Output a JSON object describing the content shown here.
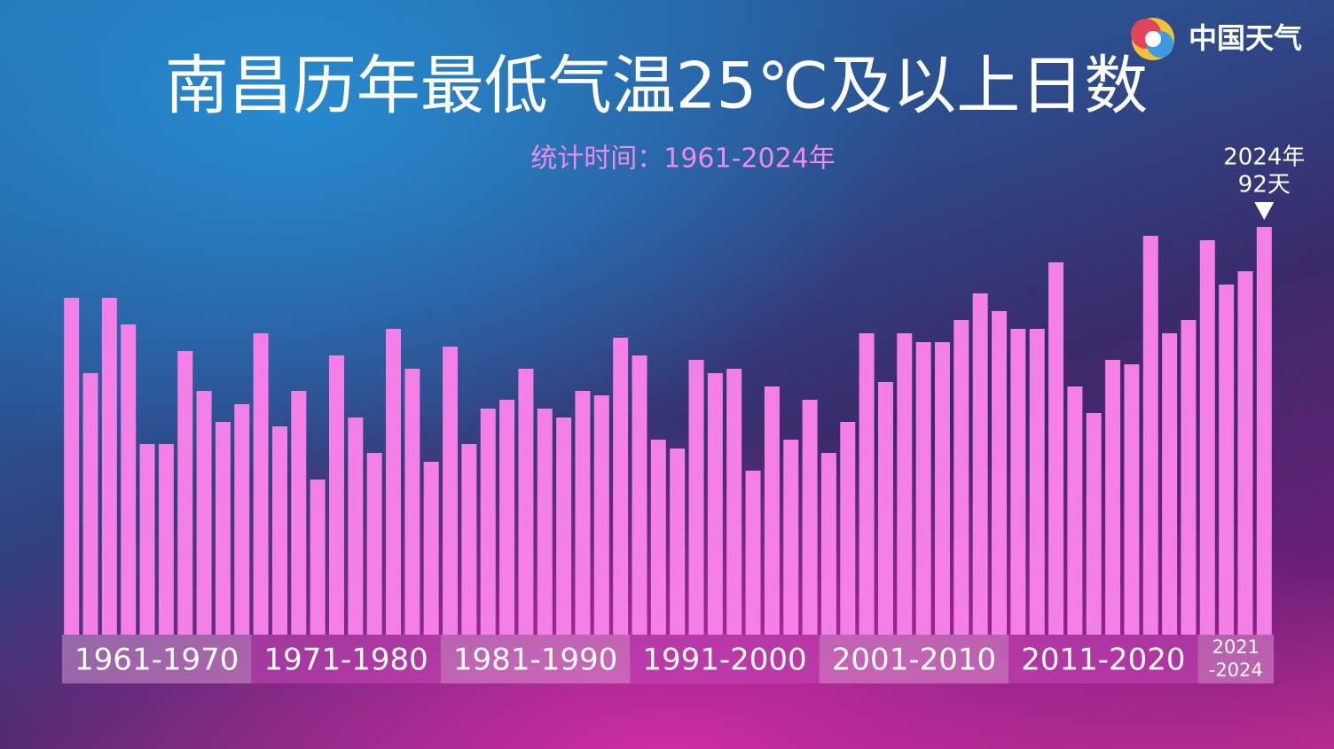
{
  "logo": "中国天气",
  "chart_data": {
    "type": "bar",
    "title": "南昌历年最低气温25℃及以上日数",
    "subtitle": "统计时间：1961-2024年",
    "color": "#f47fe6",
    "categories": [
      null,
      null,
      null,
      null,
      null,
      null,
      null,
      null,
      null,
      null,
      null,
      null,
      null,
      null,
      null,
      null,
      null,
      null,
      null,
      null,
      null,
      null,
      null,
      null,
      null,
      null,
      null,
      null,
      null,
      null,
      null,
      null,
      null,
      null,
      null,
      null,
      null,
      null,
      null,
      null,
      null,
      null,
      null,
      null,
      null,
      null,
      null,
      null,
      null,
      null,
      null,
      null,
      null,
      null,
      null,
      null,
      null,
      null,
      null,
      null,
      null,
      null,
      null,
      null
    ],
    "values": [
      76,
      59,
      76,
      70,
      43,
      43,
      64,
      55,
      48,
      52,
      68,
      47,
      55,
      35,
      63,
      49,
      41,
      69,
      60,
      39,
      65,
      43,
      51,
      53,
      60,
      51,
      49,
      55,
      54,
      67,
      63,
      44,
      42,
      62,
      59,
      60,
      37,
      56,
      44,
      53,
      41,
      48,
      68,
      57,
      68,
      66,
      66,
      71,
      77,
      73,
      69,
      69,
      84,
      56,
      50,
      62,
      61,
      90,
      68,
      71,
      89,
      79,
      82,
      92
    ],
    "groups": [
      [
        "1961-1970"
      ],
      [
        "1971-1980"
      ],
      [
        "1981-1990"
      ],
      [
        "1991-2000"
      ],
      [
        "2001-2010"
      ],
      [
        "2011-2020"
      ],
      [
        "2021",
        "-2024"
      ]
    ],
    "annotation": [
      "2024年",
      "92天"
    ]
  }
}
